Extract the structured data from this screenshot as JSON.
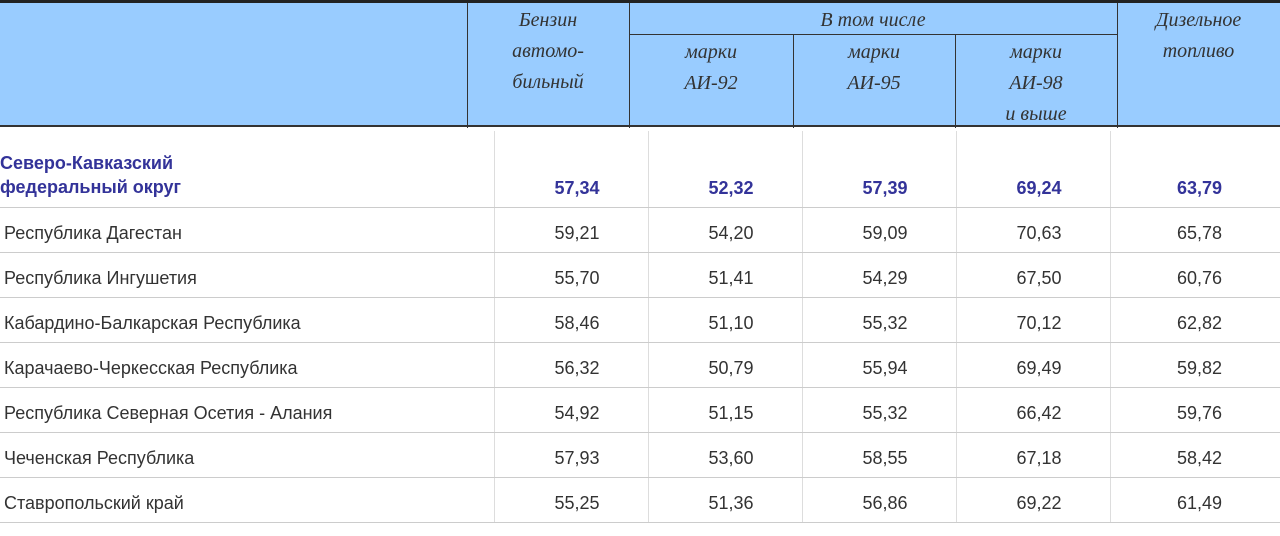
{
  "header": {
    "gasoline": "Бензин автомо- бильный",
    "gasoline_lines": [
      "Бензин",
      "автомо-",
      "бильный"
    ],
    "including": "В том числе",
    "ai92_lines": [
      "марки",
      "АИ-92"
    ],
    "ai95_lines": [
      "марки",
      "АИ-95"
    ],
    "ai98_lines": [
      "марки",
      "АИ-98",
      "и выше"
    ],
    "diesel_lines": [
      "Дизельное",
      "топливо"
    ]
  },
  "colors": {
    "header_bg": "#99ccff",
    "group_text": "#333399"
  },
  "group": {
    "name_lines": [
      "Северо-Кавказский",
      "федеральный округ"
    ],
    "values": [
      "57,34",
      "52,32",
      "57,39",
      "69,24",
      "63,79"
    ]
  },
  "rows": [
    {
      "name": "Республика Дагестан",
      "values": [
        "59,21",
        "54,20",
        "59,09",
        "70,63",
        "65,78"
      ]
    },
    {
      "name": "Республика Ингушетия",
      "values": [
        "55,70",
        "51,41",
        "54,29",
        "67,50",
        "60,76"
      ]
    },
    {
      "name": "Кабардино-Балкарская Республика",
      "values": [
        "58,46",
        "51,10",
        "55,32",
        "70,12",
        "62,82"
      ]
    },
    {
      "name": "Карачаево-Черкесская Республика",
      "values": [
        "56,32",
        "50,79",
        "55,94",
        "69,49",
        "59,82"
      ]
    },
    {
      "name": "Республика Северная Осетия - Алания",
      "values": [
        "54,92",
        "51,15",
        "55,32",
        "66,42",
        "59,76"
      ]
    },
    {
      "name": "Чеченская Республика",
      "values": [
        "57,93",
        "53,60",
        "58,55",
        "67,18",
        "58,42"
      ]
    },
    {
      "name": "Ставропольский край",
      "values": [
        "55,25",
        "51,36",
        "56,86",
        "69,22",
        "61,49"
      ]
    }
  ]
}
